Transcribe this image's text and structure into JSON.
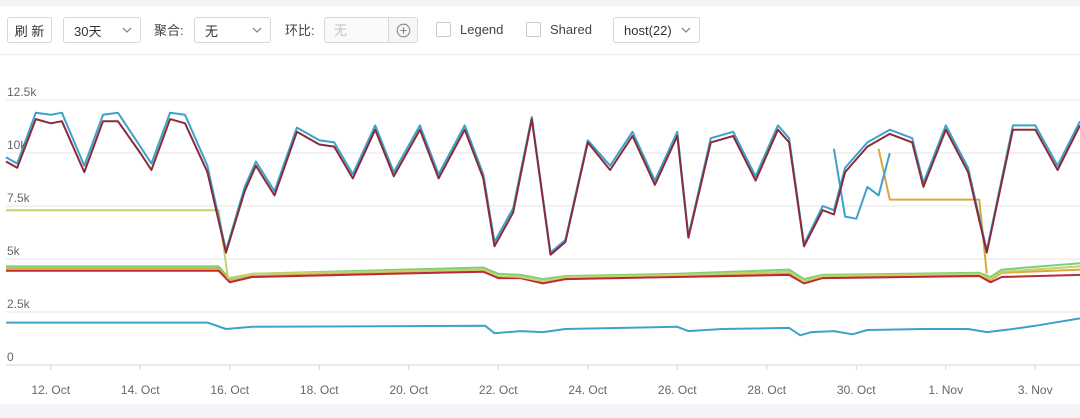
{
  "toolbar": {
    "refresh_label": "刷 新",
    "range_value": "30天",
    "aggregate_label": "聚合:",
    "aggregate_value": "无",
    "compare_label": "环比:",
    "compare_placeholder": "无",
    "legend_label": "Legend",
    "shared_label": "Shared",
    "host_value": "host(22)"
  },
  "colors": {
    "cyan": "#3ba3c8",
    "darkred": "#8c2a3a",
    "olive": "#c8cf6a",
    "gold": "#d9a93a",
    "green": "#7ccf7a",
    "grid": "#e6e6e6",
    "axis_text": "#666666"
  },
  "chart_data": {
    "type": "line",
    "title": "",
    "xlabel": "",
    "ylabel": "",
    "x_range": [
      "2024-10-11",
      "2024-11-04"
    ],
    "x_ticks": [
      {
        "date": "2024-10-12",
        "label": "12. Oct"
      },
      {
        "date": "2024-10-14",
        "label": "14. Oct"
      },
      {
        "date": "2024-10-16",
        "label": "16. Oct"
      },
      {
        "date": "2024-10-18",
        "label": "18. Oct"
      },
      {
        "date": "2024-10-20",
        "label": "20. Oct"
      },
      {
        "date": "2024-10-22",
        "label": "22. Oct"
      },
      {
        "date": "2024-10-24",
        "label": "24. Oct"
      },
      {
        "date": "2024-10-26",
        "label": "26. Oct"
      },
      {
        "date": "2024-10-28",
        "label": "28. Oct"
      },
      {
        "date": "2024-10-30",
        "label": "30. Oct"
      },
      {
        "date": "2024-11-01",
        "label": "1. Nov"
      },
      {
        "date": "2024-11-03",
        "label": "3. Nov"
      }
    ],
    "y_ticks": [
      {
        "value": 0,
        "label": "0"
      },
      {
        "value": 2500,
        "label": "2.5k"
      },
      {
        "value": 5000,
        "label": "5k"
      },
      {
        "value": 7500,
        "label": "7.5k"
      },
      {
        "value": 10000,
        "label": "10k"
      },
      {
        "value": 12500,
        "label": "12.5k"
      }
    ],
    "ylim": [
      0,
      12500
    ],
    "grid": true,
    "legend": "hidden",
    "series": [
      {
        "color": "#3ba3c8",
        "points": [
          [
            "2024-10-11 00:00",
            2000
          ],
          [
            "2024-10-15 12:00",
            2000
          ],
          [
            "2024-10-15 22:00",
            1700
          ],
          [
            "2024-10-16 12:00",
            1800
          ],
          [
            "2024-10-21 17:00",
            1850
          ],
          [
            "2024-10-21 22:00",
            1500
          ],
          [
            "2024-10-22 12:00",
            1600
          ],
          [
            "2024-10-23 00:00",
            1550
          ],
          [
            "2024-10-23 12:00",
            1700
          ],
          [
            "2024-10-26 00:00",
            1800
          ],
          [
            "2024-10-26 06:00",
            1600
          ],
          [
            "2024-10-27 00:00",
            1700
          ],
          [
            "2024-10-28 12:00",
            1750
          ],
          [
            "2024-10-28 18:00",
            1400
          ],
          [
            "2024-10-29 00:00",
            1550
          ],
          [
            "2024-10-29 12:00",
            1600
          ],
          [
            "2024-10-29 22:00",
            1450
          ],
          [
            "2024-10-30 06:00",
            1650
          ],
          [
            "2024-10-31 12:00",
            1700
          ],
          [
            "2024-11-01 12:00",
            1700
          ],
          [
            "2024-11-01 22:00",
            1550
          ],
          [
            "2024-11-02 12:00",
            1700
          ],
          [
            "2024-11-03 00:00",
            1850
          ],
          [
            "2024-11-04 00:00",
            2200
          ]
        ]
      },
      {
        "color": "#7ccf7a",
        "points": [
          [
            "2024-10-11 00:00",
            4650
          ],
          [
            "2024-10-15 18:00",
            4650
          ],
          [
            "2024-10-16 00:00",
            4050
          ],
          [
            "2024-10-16 12:00",
            4300
          ],
          [
            "2024-10-21 16:00",
            4600
          ],
          [
            "2024-10-22 00:00",
            4300
          ],
          [
            "2024-10-22 12:00",
            4250
          ],
          [
            "2024-10-23 00:00",
            4050
          ],
          [
            "2024-10-23 12:00",
            4200
          ],
          [
            "2024-10-26 00:00",
            4300
          ],
          [
            "2024-10-28 12:00",
            4500
          ],
          [
            "2024-10-28 20:00",
            4050
          ],
          [
            "2024-10-29 06:00",
            4250
          ],
          [
            "2024-11-01 18:00",
            4350
          ],
          [
            "2024-11-02 00:00",
            4150
          ],
          [
            "2024-11-02 06:00",
            4500
          ],
          [
            "2024-11-04 00:00",
            4800
          ]
        ]
      },
      {
        "color": "#d9a93a",
        "points": [
          [
            "2024-10-11 00:00",
            4550
          ],
          [
            "2024-10-15 18:00",
            4550
          ],
          [
            "2024-10-16 00:00",
            3950
          ],
          [
            "2024-10-16 12:00",
            4200
          ],
          [
            "2024-10-21 16:00",
            4450
          ],
          [
            "2024-10-22 00:00",
            4150
          ],
          [
            "2024-10-22 12:00",
            4150
          ],
          [
            "2024-10-23 00:00",
            3900
          ],
          [
            "2024-10-23 12:00",
            4100
          ],
          [
            "2024-10-26 00:00",
            4200
          ],
          [
            "2024-10-28 12:00",
            4300
          ],
          [
            "2024-10-28 20:00",
            3900
          ],
          [
            "2024-10-29 06:00",
            4150
          ],
          [
            "2024-11-01 18:00",
            4250
          ],
          [
            "2024-11-02 00:00",
            4000
          ],
          [
            "2024-11-02 06:00",
            4350
          ],
          [
            "2024-11-04 00:00",
            4500
          ]
        ]
      },
      {
        "color": "#b82c3a",
        "points": [
          [
            "2024-10-11 00:00",
            4450
          ],
          [
            "2024-10-15 18:00",
            4450
          ],
          [
            "2024-10-16 00:00",
            3900
          ],
          [
            "2024-10-16 12:00",
            4150
          ],
          [
            "2024-10-21 16:00",
            4400
          ],
          [
            "2024-10-22 00:00",
            4100
          ],
          [
            "2024-10-22 12:00",
            4100
          ],
          [
            "2024-10-23 00:00",
            3850
          ],
          [
            "2024-10-23 12:00",
            4050
          ],
          [
            "2024-10-26 00:00",
            4150
          ],
          [
            "2024-10-28 12:00",
            4250
          ],
          [
            "2024-10-28 20:00",
            3850
          ],
          [
            "2024-10-29 06:00",
            4100
          ],
          [
            "2024-11-01 18:00",
            4200
          ],
          [
            "2024-11-02 00:00",
            3900
          ],
          [
            "2024-11-02 06:00",
            4150
          ],
          [
            "2024-11-04 00:00",
            4250
          ]
        ]
      },
      {
        "color": "#c8cf6a",
        "points": [
          [
            "2024-10-11 00:00",
            7300
          ],
          [
            "2024-10-15 18:00",
            7300
          ],
          [
            "2024-10-15 23:00",
            4100
          ],
          [
            "2024-10-16 12:00",
            4300
          ],
          [
            "2024-10-21 16:00",
            4500
          ],
          [
            "2024-10-22 00:00",
            4200
          ],
          [
            "2024-10-22 12:00",
            4150
          ],
          [
            "2024-10-23 00:00",
            3950
          ],
          [
            "2024-10-23 12:00",
            4150
          ],
          [
            "2024-10-26 00:00",
            4250
          ],
          [
            "2024-10-28 12:00",
            4400
          ],
          [
            "2024-10-28 20:00",
            3950
          ],
          [
            "2024-10-29 06:00",
            4200
          ],
          [
            "2024-11-01 18:00",
            4300
          ],
          [
            "2024-11-02 00:00",
            4050
          ],
          [
            "2024-11-02 06:00",
            4400
          ],
          [
            "2024-11-04 00:00",
            4650
          ]
        ]
      },
      {
        "color": "#d9a93a",
        "points": [
          [
            "2024-10-30 12:00",
            10200
          ],
          [
            "2024-10-30 18:00",
            7800
          ],
          [
            "2024-11-01 18:00",
            7800
          ],
          [
            "2024-11-01 22:00",
            4300
          ]
        ]
      },
      {
        "color": "#3ba3c8",
        "points": [
          [
            "2024-10-29 12:00",
            10200
          ],
          [
            "2024-10-29 18:00",
            7000
          ],
          [
            "2024-10-30 00:00",
            6900
          ],
          [
            "2024-10-30 06:00",
            8400
          ],
          [
            "2024-10-30 12:00",
            8000
          ],
          [
            "2024-10-30 18:00",
            10000
          ]
        ]
      },
      {
        "color": "#3ba3c8",
        "points": [
          [
            "2024-10-11 00:00",
            9800
          ],
          [
            "2024-10-11 06:00",
            9500
          ],
          [
            "2024-10-11 16:00",
            11900
          ],
          [
            "2024-10-12 00:00",
            11800
          ],
          [
            "2024-10-12 06:00",
            11900
          ],
          [
            "2024-10-12 18:00",
            9400
          ],
          [
            "2024-10-13 04:00",
            11800
          ],
          [
            "2024-10-13 12:00",
            11900
          ],
          [
            "2024-10-14 00:00",
            10300
          ],
          [
            "2024-10-14 06:00",
            9500
          ],
          [
            "2024-10-14 16:00",
            11900
          ],
          [
            "2024-10-15 00:00",
            11800
          ],
          [
            "2024-10-15 12:00",
            9400
          ],
          [
            "2024-10-15 22:00",
            5400
          ],
          [
            "2024-10-16 08:00",
            8400
          ],
          [
            "2024-10-16 14:00",
            9600
          ],
          [
            "2024-10-17 00:00",
            8200
          ],
          [
            "2024-10-17 12:00",
            11200
          ],
          [
            "2024-10-18 00:00",
            10600
          ],
          [
            "2024-10-18 08:00",
            10500
          ],
          [
            "2024-10-18 18:00",
            9000
          ],
          [
            "2024-10-19 06:00",
            11300
          ],
          [
            "2024-10-19 16:00",
            9100
          ],
          [
            "2024-10-20 06:00",
            11300
          ],
          [
            "2024-10-20 16:00",
            9000
          ],
          [
            "2024-10-21 06:00",
            11300
          ],
          [
            "2024-10-21 16:00",
            9000
          ],
          [
            "2024-10-21 22:00",
            5800
          ],
          [
            "2024-10-22 08:00",
            7400
          ],
          [
            "2024-10-22 18:00",
            11700
          ],
          [
            "2024-10-23 04:00",
            5300
          ],
          [
            "2024-10-23 12:00",
            5900
          ],
          [
            "2024-10-24 00:00",
            10600
          ],
          [
            "2024-10-24 12:00",
            9400
          ],
          [
            "2024-10-25 00:00",
            11000
          ],
          [
            "2024-10-25 12:00",
            8700
          ],
          [
            "2024-10-26 00:00",
            11000
          ],
          [
            "2024-10-26 06:00",
            6100
          ],
          [
            "2024-10-26 18:00",
            10700
          ],
          [
            "2024-10-27 06:00",
            11000
          ],
          [
            "2024-10-27 18:00",
            8900
          ],
          [
            "2024-10-28 06:00",
            11300
          ],
          [
            "2024-10-28 12:00",
            10700
          ],
          [
            "2024-10-28 20:00",
            5700
          ],
          [
            "2024-10-29 06:00",
            7500
          ],
          [
            "2024-10-29 12:00",
            7300
          ],
          [
            "2024-10-29 18:00",
            9300
          ],
          [
            "2024-10-30 06:00",
            10500
          ],
          [
            "2024-10-30 18:00",
            11100
          ],
          [
            "2024-10-31 06:00",
            10700
          ],
          [
            "2024-10-31 12:00",
            8600
          ],
          [
            "2024-11-01 00:00",
            11300
          ],
          [
            "2024-11-01 12:00",
            9300
          ],
          [
            "2024-11-01 22:00",
            5400
          ],
          [
            "2024-11-02 12:00",
            11300
          ],
          [
            "2024-11-03 00:00",
            11300
          ],
          [
            "2024-11-03 12:00",
            9400
          ],
          [
            "2024-11-04 00:00",
            11500
          ]
        ]
      },
      {
        "color": "#8c2a3a",
        "points": [
          [
            "2024-10-11 00:00",
            9600
          ],
          [
            "2024-10-11 06:00",
            9300
          ],
          [
            "2024-10-11 16:00",
            11600
          ],
          [
            "2024-10-12 00:00",
            11400
          ],
          [
            "2024-10-12 06:00",
            11500
          ],
          [
            "2024-10-12 18:00",
            9100
          ],
          [
            "2024-10-13 04:00",
            11500
          ],
          [
            "2024-10-13 12:00",
            11500
          ],
          [
            "2024-10-14 00:00",
            10000
          ],
          [
            "2024-10-14 06:00",
            9200
          ],
          [
            "2024-10-14 16:00",
            11600
          ],
          [
            "2024-10-15 00:00",
            11400
          ],
          [
            "2024-10-15 12:00",
            9100
          ],
          [
            "2024-10-15 22:00",
            5300
          ],
          [
            "2024-10-16 08:00",
            8200
          ],
          [
            "2024-10-16 14:00",
            9400
          ],
          [
            "2024-10-17 00:00",
            8000
          ],
          [
            "2024-10-17 12:00",
            11000
          ],
          [
            "2024-10-18 00:00",
            10400
          ],
          [
            "2024-10-18 08:00",
            10300
          ],
          [
            "2024-10-18 18:00",
            8800
          ],
          [
            "2024-10-19 06:00",
            11100
          ],
          [
            "2024-10-19 16:00",
            8900
          ],
          [
            "2024-10-20 06:00",
            11100
          ],
          [
            "2024-10-20 16:00",
            8800
          ],
          [
            "2024-10-21 06:00",
            11100
          ],
          [
            "2024-10-21 16:00",
            8800
          ],
          [
            "2024-10-21 22:00",
            5600
          ],
          [
            "2024-10-22 08:00",
            7200
          ],
          [
            "2024-10-22 18:00",
            11600
          ],
          [
            "2024-10-23 04:00",
            5200
          ],
          [
            "2024-10-23 12:00",
            5800
          ],
          [
            "2024-10-24 00:00",
            10500
          ],
          [
            "2024-10-24 12:00",
            9200
          ],
          [
            "2024-10-25 00:00",
            10800
          ],
          [
            "2024-10-25 12:00",
            8500
          ],
          [
            "2024-10-26 00:00",
            10800
          ],
          [
            "2024-10-26 06:00",
            6000
          ],
          [
            "2024-10-26 18:00",
            10500
          ],
          [
            "2024-10-27 06:00",
            10800
          ],
          [
            "2024-10-27 18:00",
            8700
          ],
          [
            "2024-10-28 06:00",
            11100
          ],
          [
            "2024-10-28 12:00",
            10500
          ],
          [
            "2024-10-28 20:00",
            5600
          ],
          [
            "2024-10-29 06:00",
            7300
          ],
          [
            "2024-10-29 12:00",
            7100
          ],
          [
            "2024-10-29 18:00",
            9100
          ],
          [
            "2024-10-30 06:00",
            10300
          ],
          [
            "2024-10-30 18:00",
            10900
          ],
          [
            "2024-10-31 06:00",
            10500
          ],
          [
            "2024-10-31 12:00",
            8400
          ],
          [
            "2024-11-01 00:00",
            11100
          ],
          [
            "2024-11-01 12:00",
            9100
          ],
          [
            "2024-11-01 22:00",
            5300
          ],
          [
            "2024-11-02 12:00",
            11100
          ],
          [
            "2024-11-03 00:00",
            11100
          ],
          [
            "2024-11-03 12:00",
            9200
          ],
          [
            "2024-11-04 00:00",
            11300
          ]
        ]
      }
    ]
  }
}
